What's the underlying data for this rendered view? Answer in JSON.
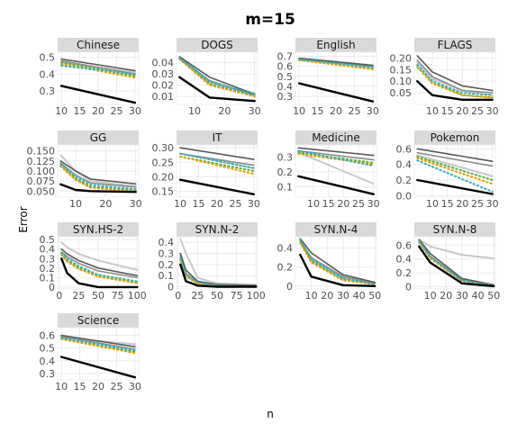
{
  "figure": {
    "title": "m=15",
    "xlabel": "n",
    "ylabel": "Error"
  },
  "style": {
    "panel_bg": "#ffffff",
    "strip_bg": "#d9d9d9",
    "grid": "#ebebeb",
    "series_colors": {
      "black": "#000000",
      "dark-gray": "#595959",
      "mid-gray": "#8c8c8c",
      "light-gray": "#c8c8c8",
      "green-dotted": "#4daf4a",
      "orange-dotted": "#e69f00",
      "teal-dotted": "#36b0b8"
    }
  },
  "chart_data": [
    {
      "type": "line",
      "title": "Chinese",
      "x_ticks": [
        "10",
        "15",
        "20",
        "25",
        "30"
      ],
      "y_ticks": [
        "0.3",
        "0.4",
        "0.5"
      ],
      "xlim": [
        9,
        31
      ],
      "ylim": [
        0.22,
        0.53
      ],
      "x": [
        10,
        30
      ],
      "series": [
        {
          "style": "black",
          "values": [
            0.33,
            0.23
          ]
        },
        {
          "style": "dark-gray",
          "values": [
            0.49,
            0.42
          ]
        },
        {
          "style": "mid-gray",
          "values": [
            0.48,
            0.4
          ]
        },
        {
          "style": "light-gray",
          "values": [
            0.47,
            0.41
          ]
        },
        {
          "style": "green-dotted",
          "values": [
            0.47,
            0.39
          ]
        },
        {
          "style": "orange-dotted",
          "values": [
            0.46,
            0.38
          ]
        },
        {
          "style": "teal-dotted",
          "values": [
            0.45,
            0.4
          ]
        }
      ]
    },
    {
      "type": "line",
      "title": "DOGS",
      "x_ticks": [
        "10",
        "20",
        "30"
      ],
      "y_ticks": [
        "0.01",
        "0.02",
        "0.03",
        "0.04"
      ],
      "xlim": [
        4,
        31
      ],
      "ylim": [
        0.003,
        0.049
      ],
      "x": [
        5,
        15,
        30
      ],
      "series": [
        {
          "style": "black",
          "values": [
            0.027,
            0.009,
            0.006
          ]
        },
        {
          "style": "dark-gray",
          "values": [
            0.045,
            0.027,
            0.012
          ]
        },
        {
          "style": "mid-gray",
          "values": [
            0.044,
            0.024,
            0.011
          ]
        },
        {
          "style": "light-gray",
          "values": [
            0.043,
            0.022,
            0.013
          ]
        },
        {
          "style": "green-dotted",
          "values": [
            0.044,
            0.021,
            0.011
          ]
        },
        {
          "style": "orange-dotted",
          "values": [
            0.043,
            0.02,
            0.01
          ]
        },
        {
          "style": "teal-dotted",
          "values": [
            0.044,
            0.023,
            0.012
          ]
        }
      ]
    },
    {
      "type": "line",
      "title": "English",
      "x_ticks": [
        "10",
        "15",
        "20",
        "25",
        "30"
      ],
      "y_ticks": [
        "0.3",
        "0.4",
        "0.5",
        "0.6",
        "0.7"
      ],
      "xlim": [
        9,
        31
      ],
      "ylim": [
        0.22,
        0.74
      ],
      "x": [
        10,
        30
      ],
      "series": [
        {
          "style": "black",
          "values": [
            0.43,
            0.25
          ]
        },
        {
          "style": "dark-gray",
          "values": [
            0.68,
            0.61
          ]
        },
        {
          "style": "mid-gray",
          "values": [
            0.67,
            0.6
          ]
        },
        {
          "style": "light-gray",
          "values": [
            0.66,
            0.6
          ]
        },
        {
          "style": "green-dotted",
          "values": [
            0.67,
            0.58
          ]
        },
        {
          "style": "orange-dotted",
          "values": [
            0.66,
            0.57
          ]
        },
        {
          "style": "teal-dotted",
          "values": [
            0.67,
            0.59
          ]
        }
      ]
    },
    {
      "type": "line",
      "title": "FLAGS",
      "x_ticks": [
        "10",
        "15",
        "20",
        "25",
        "30"
      ],
      "y_ticks": [
        "0.05",
        "0.10",
        "0.15",
        "0.20"
      ],
      "xlim": [
        4,
        31
      ],
      "ylim": [
        0.0,
        0.225
      ],
      "x": [
        5,
        10,
        20,
        30
      ],
      "series": [
        {
          "style": "black",
          "values": [
            0.1,
            0.04,
            0.02,
            0.02
          ]
        },
        {
          "style": "dark-gray",
          "values": [
            0.21,
            0.14,
            0.08,
            0.06
          ]
        },
        {
          "style": "mid-gray",
          "values": [
            0.19,
            0.12,
            0.06,
            0.05
          ]
        },
        {
          "style": "light-gray",
          "values": [
            0.18,
            0.11,
            0.06,
            0.04
          ]
        },
        {
          "style": "green-dotted",
          "values": [
            0.17,
            0.1,
            0.04,
            0.03
          ]
        },
        {
          "style": "orange-dotted",
          "values": [
            0.16,
            0.09,
            0.04,
            0.03
          ]
        },
        {
          "style": "teal-dotted",
          "values": [
            0.17,
            0.1,
            0.05,
            0.04
          ]
        }
      ]
    },
    {
      "type": "line",
      "title": "GG",
      "x_ticks": [
        "10",
        "20",
        "30"
      ],
      "y_ticks": [
        "0.050",
        "0.075",
        "0.100",
        "0.125",
        "0.150"
      ],
      "xlim": [
        4,
        31
      ],
      "ylim": [
        0.035,
        0.165
      ],
      "x": [
        5,
        10,
        15,
        30
      ],
      "series": [
        {
          "style": "black",
          "values": [
            0.067,
            0.053,
            0.05,
            0.048
          ]
        },
        {
          "style": "dark-gray",
          "values": [
            0.125,
            0.1,
            0.08,
            0.068
          ]
        },
        {
          "style": "mid-gray",
          "values": [
            0.12,
            0.09,
            0.07,
            0.06
          ]
        },
        {
          "style": "light-gray",
          "values": [
            0.14,
            0.1,
            0.075,
            0.062
          ]
        },
        {
          "style": "green-dotted",
          "values": [
            0.115,
            0.08,
            0.06,
            0.052
          ]
        },
        {
          "style": "orange-dotted",
          "values": [
            0.112,
            0.078,
            0.058,
            0.05
          ]
        },
        {
          "style": "teal-dotted",
          "values": [
            0.118,
            0.085,
            0.065,
            0.055
          ]
        }
      ]
    },
    {
      "type": "line",
      "title": "IT",
      "x_ticks": [
        "10",
        "15",
        "20",
        "25",
        "30"
      ],
      "y_ticks": [
        "0.15",
        "0.20",
        "0.25",
        "0.30"
      ],
      "xlim": [
        9,
        31
      ],
      "ylim": [
        0.13,
        0.31
      ],
      "x": [
        10,
        30
      ],
      "series": [
        {
          "style": "black",
          "values": [
            0.19,
            0.14
          ]
        },
        {
          "style": "dark-gray",
          "values": [
            0.3,
            0.26
          ]
        },
        {
          "style": "mid-gray",
          "values": [
            0.28,
            0.24
          ]
        },
        {
          "style": "light-gray",
          "values": [
            0.28,
            0.23
          ]
        },
        {
          "style": "green-dotted",
          "values": [
            0.27,
            0.22
          ]
        },
        {
          "style": "orange-dotted",
          "values": [
            0.27,
            0.21
          ]
        },
        {
          "style": "teal-dotted",
          "values": [
            0.28,
            0.23
          ]
        }
      ]
    },
    {
      "type": "line",
      "title": "Medicine",
      "x_ticks": [
        "10",
        "15",
        "20",
        "25",
        "30"
      ],
      "y_ticks": [
        "0.1",
        "0.2",
        "0.3"
      ],
      "xlim": [
        4,
        31
      ],
      "ylim": [
        0.03,
        0.38
      ],
      "x": [
        5,
        30
      ],
      "series": [
        {
          "style": "black",
          "values": [
            0.17,
            0.05
          ]
        },
        {
          "style": "dark-gray",
          "values": [
            0.36,
            0.31
          ]
        },
        {
          "style": "mid-gray",
          "values": [
            0.34,
            0.28
          ]
        },
        {
          "style": "light-gray",
          "values": [
            0.33,
            0.12
          ]
        },
        {
          "style": "green-dotted",
          "values": [
            0.33,
            0.26
          ]
        },
        {
          "style": "orange-dotted",
          "values": [
            0.32,
            0.25
          ]
        },
        {
          "style": "teal-dotted",
          "values": [
            0.34,
            0.24
          ]
        }
      ]
    },
    {
      "type": "line",
      "title": "Pokemon",
      "x_ticks": [
        "10",
        "15",
        "20",
        "25",
        "30"
      ],
      "y_ticks": [
        "0.0",
        "0.2",
        "0.4",
        "0.6"
      ],
      "xlim": [
        4,
        31
      ],
      "ylim": [
        -0.02,
        0.65
      ],
      "x": [
        5,
        30
      ],
      "series": [
        {
          "style": "black",
          "values": [
            0.2,
            0.02
          ]
        },
        {
          "style": "dark-gray",
          "values": [
            0.6,
            0.44
          ]
        },
        {
          "style": "mid-gray",
          "values": [
            0.55,
            0.38
          ]
        },
        {
          "style": "light-gray",
          "values": [
            0.52,
            0.25
          ]
        },
        {
          "style": "green-dotted",
          "values": [
            0.5,
            0.2
          ]
        },
        {
          "style": "orange-dotted",
          "values": [
            0.48,
            0.15
          ]
        },
        {
          "style": "teal-dotted",
          "values": [
            0.45,
            0.05
          ]
        }
      ]
    },
    {
      "type": "line",
      "title": "SYN.HS-2",
      "x_ticks": [
        "0",
        "25",
        "50",
        "75",
        "100"
      ],
      "y_ticks": [
        "0",
        "0.1",
        "0.2",
        "0.3",
        "0.4",
        "0.5"
      ],
      "xlim": [
        -2,
        102
      ],
      "ylim": [
        -0.02,
        0.53
      ],
      "x": [
        3,
        10,
        25,
        50,
        100
      ],
      "series": [
        {
          "style": "black",
          "values": [
            0.3,
            0.15,
            0.04,
            0.0,
            0.0
          ]
        },
        {
          "style": "dark-gray",
          "values": [
            0.4,
            0.35,
            0.28,
            0.2,
            0.12
          ]
        },
        {
          "style": "mid-gray",
          "values": [
            0.37,
            0.32,
            0.25,
            0.17,
            0.1
          ]
        },
        {
          "style": "light-gray",
          "values": [
            0.47,
            0.42,
            0.35,
            0.28,
            0.18
          ]
        },
        {
          "style": "green-dotted",
          "values": [
            0.35,
            0.28,
            0.2,
            0.12,
            0.05
          ]
        },
        {
          "style": "orange-dotted",
          "values": [
            0.34,
            0.27,
            0.19,
            0.11,
            0.04
          ]
        },
        {
          "style": "teal-dotted",
          "values": [
            0.36,
            0.3,
            0.22,
            0.13,
            0.06
          ]
        }
      ]
    },
    {
      "type": "line",
      "title": "SYN.N-2",
      "x_ticks": [
        "0",
        "25",
        "50",
        "75",
        "100"
      ],
      "y_ticks": [
        "0",
        "0.1",
        "0.2",
        "0.3",
        "0.4"
      ],
      "xlim": [
        -2,
        102
      ],
      "ylim": [
        -0.02,
        0.45
      ],
      "x": [
        3,
        10,
        25,
        50,
        100
      ],
      "series": [
        {
          "style": "black",
          "values": [
            0.2,
            0.05,
            0.01,
            0.0,
            0.0
          ]
        },
        {
          "style": "dark-gray",
          "values": [
            0.3,
            0.15,
            0.05,
            0.02,
            0.01
          ]
        },
        {
          "style": "mid-gray",
          "values": [
            0.28,
            0.12,
            0.04,
            0.02,
            0.01
          ]
        },
        {
          "style": "light-gray",
          "values": [
            0.43,
            0.3,
            0.08,
            0.03,
            0.02
          ]
        },
        {
          "style": "green-dotted",
          "values": [
            0.25,
            0.1,
            0.03,
            0.01,
            0.0
          ]
        },
        {
          "style": "orange-dotted",
          "values": [
            0.24,
            0.09,
            0.03,
            0.01,
            0.0
          ]
        },
        {
          "style": "teal-dotted",
          "values": [
            0.26,
            0.11,
            0.04,
            0.01,
            0.0
          ]
        }
      ]
    },
    {
      "type": "line",
      "title": "SYN.N-4",
      "x_ticks": [
        "10",
        "20",
        "30",
        "40",
        "50"
      ],
      "y_ticks": [
        "0",
        "0.2",
        "0.4"
      ],
      "xlim": [
        0,
        51
      ],
      "ylim": [
        -0.03,
        0.52
      ],
      "x": [
        3,
        10,
        30,
        50
      ],
      "series": [
        {
          "style": "black",
          "values": [
            0.33,
            0.1,
            0.01,
            0.0
          ]
        },
        {
          "style": "dark-gray",
          "values": [
            0.5,
            0.35,
            0.12,
            0.04
          ]
        },
        {
          "style": "mid-gray",
          "values": [
            0.48,
            0.3,
            0.1,
            0.03
          ]
        },
        {
          "style": "light-gray",
          "values": [
            0.45,
            0.28,
            0.09,
            0.03
          ]
        },
        {
          "style": "green-dotted",
          "values": [
            0.47,
            0.26,
            0.07,
            0.02
          ]
        },
        {
          "style": "orange-dotted",
          "values": [
            0.46,
            0.25,
            0.06,
            0.02
          ]
        },
        {
          "style": "teal-dotted",
          "values": [
            0.49,
            0.28,
            0.08,
            0.02
          ]
        }
      ]
    },
    {
      "type": "line",
      "title": "SYN.N-8",
      "x_ticks": [
        "10",
        "20",
        "30",
        "40",
        "50"
      ],
      "y_ticks": [
        "0",
        "0.2",
        "0.4",
        "0.6"
      ],
      "xlim": [
        0,
        51
      ],
      "ylim": [
        -0.03,
        0.72
      ],
      "x": [
        3,
        10,
        30,
        50
      ],
      "series": [
        {
          "style": "black",
          "values": [
            0.58,
            0.35,
            0.05,
            0.01
          ]
        },
        {
          "style": "dark-gray",
          "values": [
            0.68,
            0.48,
            0.12,
            0.03
          ]
        },
        {
          "style": "mid-gray",
          "values": [
            0.66,
            0.44,
            0.1,
            0.02
          ]
        },
        {
          "style": "light-gray",
          "values": [
            0.68,
            0.58,
            0.46,
            0.41
          ]
        },
        {
          "style": "green-dotted",
          "values": [
            0.65,
            0.42,
            0.09,
            0.02
          ]
        },
        {
          "style": "orange-dotted",
          "values": [
            0.64,
            0.41,
            0.08,
            0.02
          ]
        },
        {
          "style": "teal-dotted",
          "values": [
            0.66,
            0.43,
            0.09,
            0.02
          ]
        }
      ]
    },
    {
      "type": "line",
      "title": "Science",
      "x_ticks": [
        "10",
        "15",
        "20",
        "25",
        "30"
      ],
      "y_ticks": [
        "0.3",
        "0.4",
        "0.5",
        "0.6"
      ],
      "xlim": [
        9,
        31
      ],
      "ylim": [
        0.25,
        0.66
      ],
      "x": [
        10,
        30
      ],
      "series": [
        {
          "style": "black",
          "values": [
            0.43,
            0.27
          ]
        },
        {
          "style": "dark-gray",
          "values": [
            0.6,
            0.51
          ]
        },
        {
          "style": "mid-gray",
          "values": [
            0.59,
            0.49
          ]
        },
        {
          "style": "light-gray",
          "values": [
            0.58,
            0.53
          ]
        },
        {
          "style": "green-dotted",
          "values": [
            0.58,
            0.47
          ]
        },
        {
          "style": "orange-dotted",
          "values": [
            0.57,
            0.46
          ]
        },
        {
          "style": "teal-dotted",
          "values": [
            0.58,
            0.48
          ]
        }
      ]
    }
  ]
}
